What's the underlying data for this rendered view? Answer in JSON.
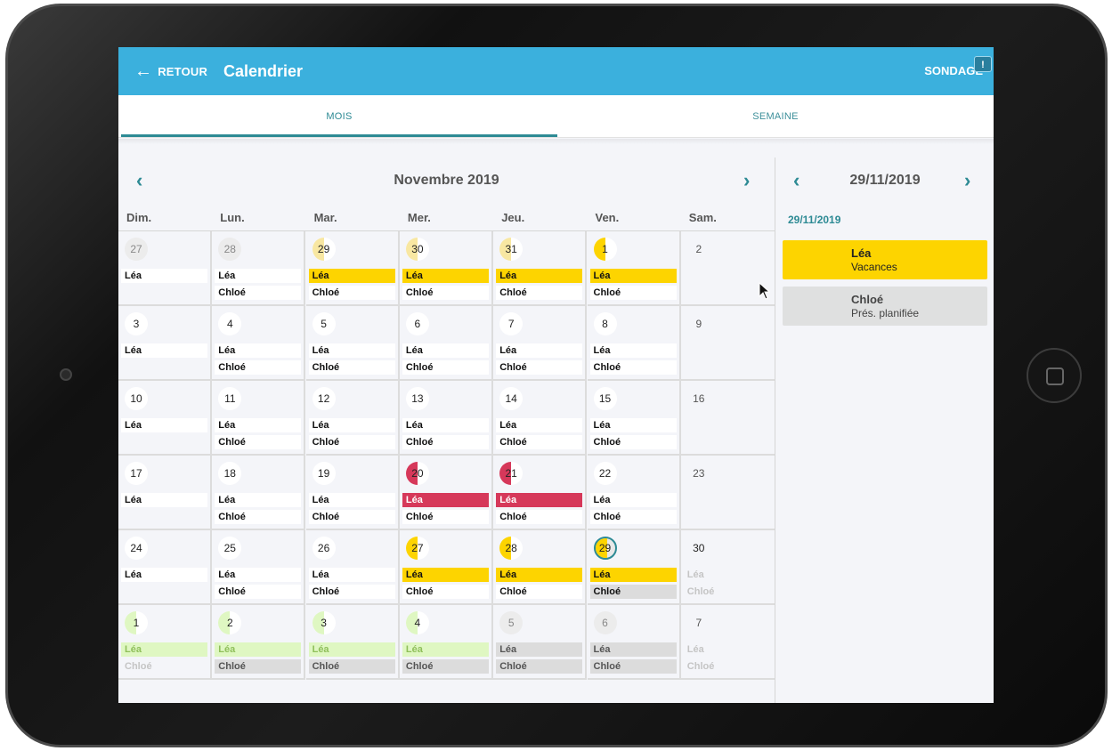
{
  "topbar": {
    "back_label": "RETOUR",
    "title": "Calendrier",
    "survey_label": "SONDAGE",
    "survey_badge": "!"
  },
  "tabs": [
    {
      "label": "MOIS"
    },
    {
      "label": "SEMAINE"
    }
  ],
  "calendar": {
    "month_title": "Novembre 2019",
    "weekdays": [
      "Dim.",
      "Lun.",
      "Mar.",
      "Mer.",
      "Jeu.",
      "Ven.",
      "Sam."
    ],
    "legend_colors": {
      "vacation": "#fdd400",
      "absence": "#d6385a",
      "planned": "#dcdcdc",
      "future": "#dff7c2",
      "accent": "#2d8a94"
    },
    "weeks": [
      [
        {
          "day": "27",
          "style": "faded",
          "lea": "Léa",
          "lea_c": "white",
          "chloe": "",
          "chloe_c": "none"
        },
        {
          "day": "28",
          "style": "faded",
          "lea": "Léa",
          "lea_c": "white",
          "chloe": "Chloé",
          "chloe_c": "white"
        },
        {
          "day": "29",
          "style": "halfyellowlight",
          "lea": "Léa",
          "lea_c": "yellow",
          "chloe": "Chloé",
          "chloe_c": "white"
        },
        {
          "day": "30",
          "style": "halfyellowlight",
          "lea": "Léa",
          "lea_c": "yellow",
          "chloe": "Chloé",
          "chloe_c": "white"
        },
        {
          "day": "31",
          "style": "halfyellowlight",
          "lea": "Léa",
          "lea_c": "yellow",
          "chloe": "Chloé",
          "chloe_c": "white"
        },
        {
          "day": "1",
          "style": "halfyellow",
          "lea": "Léa",
          "lea_c": "yellow",
          "chloe": "Chloé",
          "chloe_c": "white"
        },
        {
          "day": "2",
          "style": "plain",
          "lea": "",
          "lea_c": "none",
          "chloe": "",
          "chloe_c": "none"
        }
      ],
      [
        {
          "day": "3",
          "style": "normal",
          "lea": "Léa",
          "lea_c": "white",
          "chloe": "",
          "chloe_c": "none"
        },
        {
          "day": "4",
          "style": "normal",
          "lea": "Léa",
          "lea_c": "white",
          "chloe": "Chloé",
          "chloe_c": "white"
        },
        {
          "day": "5",
          "style": "normal",
          "lea": "Léa",
          "lea_c": "white",
          "chloe": "Chloé",
          "chloe_c": "white"
        },
        {
          "day": "6",
          "style": "normal",
          "lea": "Léa",
          "lea_c": "white",
          "chloe": "Chloé",
          "chloe_c": "white"
        },
        {
          "day": "7",
          "style": "normal",
          "lea": "Léa",
          "lea_c": "white",
          "chloe": "Chloé",
          "chloe_c": "white"
        },
        {
          "day": "8",
          "style": "normal",
          "lea": "Léa",
          "lea_c": "white",
          "chloe": "Chloé",
          "chloe_c": "white"
        },
        {
          "day": "9",
          "style": "plain",
          "lea": "",
          "lea_c": "none",
          "chloe": "",
          "chloe_c": "none"
        }
      ],
      [
        {
          "day": "10",
          "style": "normal",
          "lea": "Léa",
          "lea_c": "white",
          "chloe": "",
          "chloe_c": "none"
        },
        {
          "day": "11",
          "style": "normal",
          "lea": "Léa",
          "lea_c": "white",
          "chloe": "Chloé",
          "chloe_c": "white"
        },
        {
          "day": "12",
          "style": "normal",
          "lea": "Léa",
          "lea_c": "white",
          "chloe": "Chloé",
          "chloe_c": "white"
        },
        {
          "day": "13",
          "style": "normal",
          "lea": "Léa",
          "lea_c": "white",
          "chloe": "Chloé",
          "chloe_c": "white"
        },
        {
          "day": "14",
          "style": "normal",
          "lea": "Léa",
          "lea_c": "white",
          "chloe": "Chloé",
          "chloe_c": "white"
        },
        {
          "day": "15",
          "style": "normal",
          "lea": "Léa",
          "lea_c": "white",
          "chloe": "Chloé",
          "chloe_c": "white"
        },
        {
          "day": "16",
          "style": "plain",
          "lea": "",
          "lea_c": "none",
          "chloe": "",
          "chloe_c": "none"
        }
      ],
      [
        {
          "day": "17",
          "style": "normal",
          "lea": "Léa",
          "lea_c": "white",
          "chloe": "",
          "chloe_c": "none"
        },
        {
          "day": "18",
          "style": "normal",
          "lea": "Léa",
          "lea_c": "white",
          "chloe": "Chloé",
          "chloe_c": "white"
        },
        {
          "day": "19",
          "style": "normal",
          "lea": "Léa",
          "lea_c": "white",
          "chloe": "Chloé",
          "chloe_c": "white"
        },
        {
          "day": "20",
          "style": "halfred",
          "lea": "Léa",
          "lea_c": "red",
          "chloe": "Chloé",
          "chloe_c": "white"
        },
        {
          "day": "21",
          "style": "halfred",
          "lea": "Léa",
          "lea_c": "red",
          "chloe": "Chloé",
          "chloe_c": "white"
        },
        {
          "day": "22",
          "style": "normal",
          "lea": "Léa",
          "lea_c": "white",
          "chloe": "Chloé",
          "chloe_c": "white"
        },
        {
          "day": "23",
          "style": "plain",
          "lea": "",
          "lea_c": "none",
          "chloe": "",
          "chloe_c": "none"
        }
      ],
      [
        {
          "day": "24",
          "style": "normal",
          "lea": "Léa",
          "lea_c": "white",
          "chloe": "",
          "chloe_c": "none"
        },
        {
          "day": "25",
          "style": "normal",
          "lea": "Léa",
          "lea_c": "white",
          "chloe": "Chloé",
          "chloe_c": "white"
        },
        {
          "day": "26",
          "style": "normal",
          "lea": "Léa",
          "lea_c": "white",
          "chloe": "Chloé",
          "chloe_c": "white"
        },
        {
          "day": "27",
          "style": "halfyellow",
          "lea": "Léa",
          "lea_c": "yellow",
          "chloe": "Chloé",
          "chloe_c": "white"
        },
        {
          "day": "28",
          "style": "halfyellow",
          "lea": "Léa",
          "lea_c": "yellow",
          "chloe": "Chloé",
          "chloe_c": "white"
        },
        {
          "day": "29",
          "style": "today",
          "lea": "Léa",
          "lea_c": "yellow",
          "chloe": "Chloé",
          "chloe_c": "grey"
        },
        {
          "day": "30",
          "style": "plainwhite",
          "lea": "Léa",
          "lea_c": "ghost",
          "chloe": "Chloé",
          "chloe_c": "ghost"
        }
      ],
      [
        {
          "day": "1",
          "style": "halfgreen",
          "lea": "Léa",
          "lea_c": "green",
          "chloe": "Chloé",
          "chloe_c": "ghost"
        },
        {
          "day": "2",
          "style": "halfgreen",
          "lea": "Léa",
          "lea_c": "green",
          "chloe": "Chloé",
          "chloe_c": "grey"
        },
        {
          "day": "3",
          "style": "halfgreen",
          "lea": "Léa",
          "lea_c": "green",
          "chloe": "Chloé",
          "chloe_c": "grey"
        },
        {
          "day": "4",
          "style": "halfgreen",
          "lea": "Léa",
          "lea_c": "green",
          "chloe": "Chloé",
          "chloe_c": "grey"
        },
        {
          "day": "5",
          "style": "faded",
          "lea": "Léa",
          "lea_c": "grey",
          "chloe": "Chloé",
          "chloe_c": "grey"
        },
        {
          "day": "6",
          "style": "faded",
          "lea": "Léa",
          "lea_c": "grey",
          "chloe": "Chloé",
          "chloe_c": "grey"
        },
        {
          "day": "7",
          "style": "plain",
          "lea": "Léa",
          "lea_c": "ghost",
          "chloe": "Chloé",
          "chloe_c": "ghost"
        }
      ]
    ]
  },
  "side_panel": {
    "date_title": "29/11/2019",
    "date_sub": "29/11/2019",
    "events": [
      {
        "who": "Léa",
        "what": "Vacances"
      },
      {
        "who": "Chloé",
        "what": "Prés. planifiée"
      }
    ]
  }
}
